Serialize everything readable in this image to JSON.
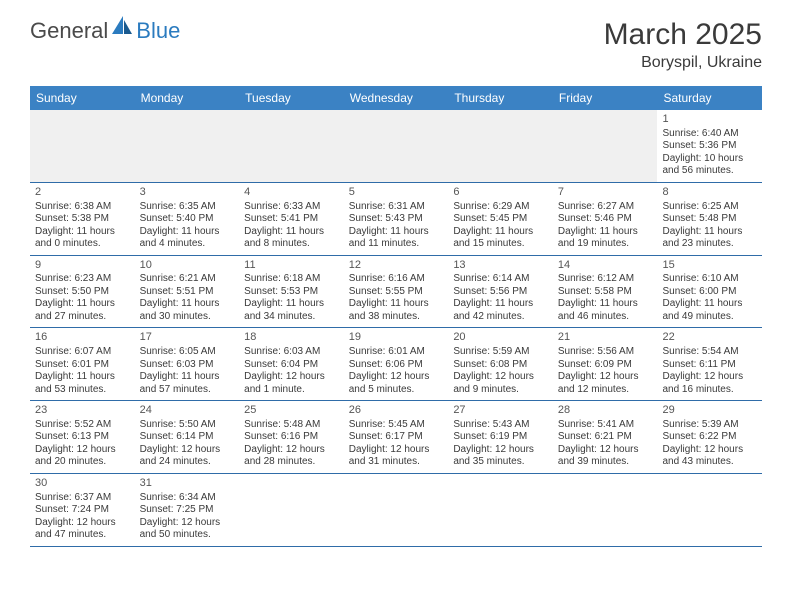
{
  "logo": {
    "general": "General",
    "blue": "Blue"
  },
  "title": "March 2025",
  "location": "Boryspil, Ukraine",
  "colors": {
    "header_bg": "#3b82c4",
    "border": "#2f6ca8",
    "blank_bg": "#f0f0f0",
    "text": "#3a3a3a",
    "logo_grey": "#4a4a4a",
    "logo_blue": "#2b7bbf"
  },
  "dow": [
    "Sunday",
    "Monday",
    "Tuesday",
    "Wednesday",
    "Thursday",
    "Friday",
    "Saturday"
  ],
  "weeks": [
    [
      null,
      null,
      null,
      null,
      null,
      null,
      {
        "n": "1",
        "sr": "Sunrise: 6:40 AM",
        "ss": "Sunset: 5:36 PM",
        "dl": "Daylight: 10 hours and 56 minutes."
      }
    ],
    [
      {
        "n": "2",
        "sr": "Sunrise: 6:38 AM",
        "ss": "Sunset: 5:38 PM",
        "dl": "Daylight: 11 hours and 0 minutes."
      },
      {
        "n": "3",
        "sr": "Sunrise: 6:35 AM",
        "ss": "Sunset: 5:40 PM",
        "dl": "Daylight: 11 hours and 4 minutes."
      },
      {
        "n": "4",
        "sr": "Sunrise: 6:33 AM",
        "ss": "Sunset: 5:41 PM",
        "dl": "Daylight: 11 hours and 8 minutes."
      },
      {
        "n": "5",
        "sr": "Sunrise: 6:31 AM",
        "ss": "Sunset: 5:43 PM",
        "dl": "Daylight: 11 hours and 11 minutes."
      },
      {
        "n": "6",
        "sr": "Sunrise: 6:29 AM",
        "ss": "Sunset: 5:45 PM",
        "dl": "Daylight: 11 hours and 15 minutes."
      },
      {
        "n": "7",
        "sr": "Sunrise: 6:27 AM",
        "ss": "Sunset: 5:46 PM",
        "dl": "Daylight: 11 hours and 19 minutes."
      },
      {
        "n": "8",
        "sr": "Sunrise: 6:25 AM",
        "ss": "Sunset: 5:48 PM",
        "dl": "Daylight: 11 hours and 23 minutes."
      }
    ],
    [
      {
        "n": "9",
        "sr": "Sunrise: 6:23 AM",
        "ss": "Sunset: 5:50 PM",
        "dl": "Daylight: 11 hours and 27 minutes."
      },
      {
        "n": "10",
        "sr": "Sunrise: 6:21 AM",
        "ss": "Sunset: 5:51 PM",
        "dl": "Daylight: 11 hours and 30 minutes."
      },
      {
        "n": "11",
        "sr": "Sunrise: 6:18 AM",
        "ss": "Sunset: 5:53 PM",
        "dl": "Daylight: 11 hours and 34 minutes."
      },
      {
        "n": "12",
        "sr": "Sunrise: 6:16 AM",
        "ss": "Sunset: 5:55 PM",
        "dl": "Daylight: 11 hours and 38 minutes."
      },
      {
        "n": "13",
        "sr": "Sunrise: 6:14 AM",
        "ss": "Sunset: 5:56 PM",
        "dl": "Daylight: 11 hours and 42 minutes."
      },
      {
        "n": "14",
        "sr": "Sunrise: 6:12 AM",
        "ss": "Sunset: 5:58 PM",
        "dl": "Daylight: 11 hours and 46 minutes."
      },
      {
        "n": "15",
        "sr": "Sunrise: 6:10 AM",
        "ss": "Sunset: 6:00 PM",
        "dl": "Daylight: 11 hours and 49 minutes."
      }
    ],
    [
      {
        "n": "16",
        "sr": "Sunrise: 6:07 AM",
        "ss": "Sunset: 6:01 PM",
        "dl": "Daylight: 11 hours and 53 minutes."
      },
      {
        "n": "17",
        "sr": "Sunrise: 6:05 AM",
        "ss": "Sunset: 6:03 PM",
        "dl": "Daylight: 11 hours and 57 minutes."
      },
      {
        "n": "18",
        "sr": "Sunrise: 6:03 AM",
        "ss": "Sunset: 6:04 PM",
        "dl": "Daylight: 12 hours and 1 minute."
      },
      {
        "n": "19",
        "sr": "Sunrise: 6:01 AM",
        "ss": "Sunset: 6:06 PM",
        "dl": "Daylight: 12 hours and 5 minutes."
      },
      {
        "n": "20",
        "sr": "Sunrise: 5:59 AM",
        "ss": "Sunset: 6:08 PM",
        "dl": "Daylight: 12 hours and 9 minutes."
      },
      {
        "n": "21",
        "sr": "Sunrise: 5:56 AM",
        "ss": "Sunset: 6:09 PM",
        "dl": "Daylight: 12 hours and 12 minutes."
      },
      {
        "n": "22",
        "sr": "Sunrise: 5:54 AM",
        "ss": "Sunset: 6:11 PM",
        "dl": "Daylight: 12 hours and 16 minutes."
      }
    ],
    [
      {
        "n": "23",
        "sr": "Sunrise: 5:52 AM",
        "ss": "Sunset: 6:13 PM",
        "dl": "Daylight: 12 hours and 20 minutes."
      },
      {
        "n": "24",
        "sr": "Sunrise: 5:50 AM",
        "ss": "Sunset: 6:14 PM",
        "dl": "Daylight: 12 hours and 24 minutes."
      },
      {
        "n": "25",
        "sr": "Sunrise: 5:48 AM",
        "ss": "Sunset: 6:16 PM",
        "dl": "Daylight: 12 hours and 28 minutes."
      },
      {
        "n": "26",
        "sr": "Sunrise: 5:45 AM",
        "ss": "Sunset: 6:17 PM",
        "dl": "Daylight: 12 hours and 31 minutes."
      },
      {
        "n": "27",
        "sr": "Sunrise: 5:43 AM",
        "ss": "Sunset: 6:19 PM",
        "dl": "Daylight: 12 hours and 35 minutes."
      },
      {
        "n": "28",
        "sr": "Sunrise: 5:41 AM",
        "ss": "Sunset: 6:21 PM",
        "dl": "Daylight: 12 hours and 39 minutes."
      },
      {
        "n": "29",
        "sr": "Sunrise: 5:39 AM",
        "ss": "Sunset: 6:22 PM",
        "dl": "Daylight: 12 hours and 43 minutes."
      }
    ],
    [
      {
        "n": "30",
        "sr": "Sunrise: 6:37 AM",
        "ss": "Sunset: 7:24 PM",
        "dl": "Daylight: 12 hours and 47 minutes."
      },
      {
        "n": "31",
        "sr": "Sunrise: 6:34 AM",
        "ss": "Sunset: 7:25 PM",
        "dl": "Daylight: 12 hours and 50 minutes."
      },
      null,
      null,
      null,
      null,
      null
    ]
  ]
}
